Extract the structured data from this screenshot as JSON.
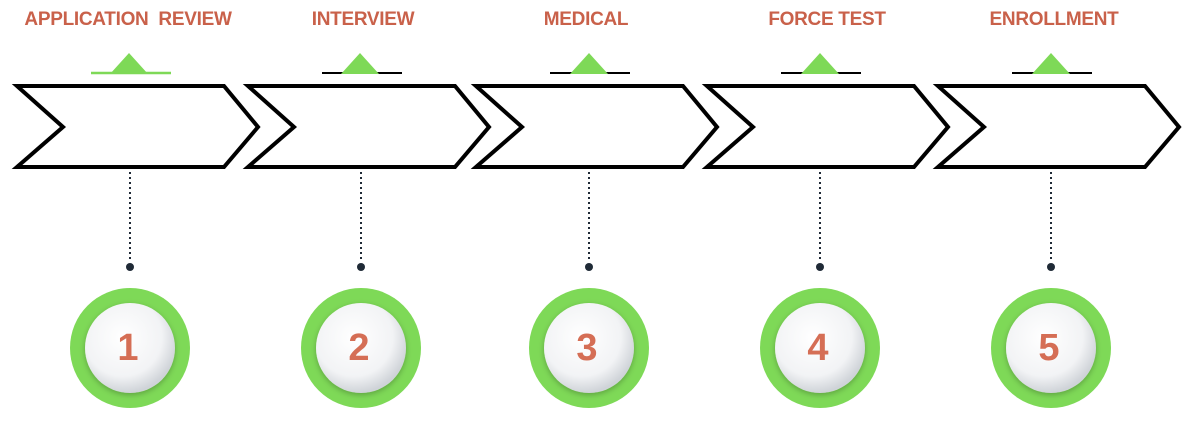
{
  "colors": {
    "title": "#c9614a",
    "number": "#d56e55",
    "accent_green": "#7ed957",
    "chevron_stroke": "#000000",
    "chevron_fill": "#ffffff",
    "connector": "#1f2a36",
    "disc_light": "#ffffff",
    "disc_shadow": "#cfd3d8"
  },
  "steps": [
    {
      "title": "APPLICATION  REVIEW",
      "number": "1"
    },
    {
      "title": "INTERVIEW",
      "number": "2"
    },
    {
      "title": "MEDICAL",
      "number": "3"
    },
    {
      "title": "FORCE TEST",
      "number": "4"
    },
    {
      "title": "ENROLLMENT",
      "number": "5"
    }
  ]
}
